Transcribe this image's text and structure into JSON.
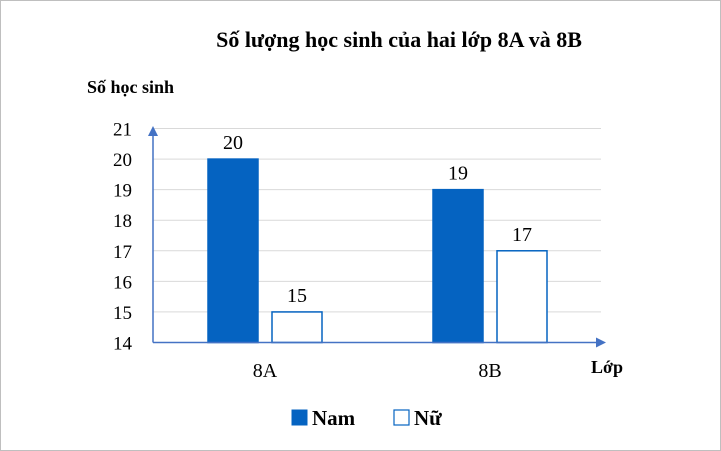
{
  "chart_data": {
    "type": "bar",
    "title": "Số lượng học sinh của hai lớp 8A và 8B",
    "ylabel": "Số học sinh",
    "xlabel": "Lớp",
    "categories": [
      "8A",
      "8B"
    ],
    "yticks": [
      "21",
      "20",
      "19",
      "18",
      "17",
      "16",
      "15",
      "14"
    ],
    "ylim": [
      14,
      21
    ],
    "grid": true,
    "legend_position": "bottom",
    "series": [
      {
        "name": "Nam",
        "values": [
          20,
          19
        ],
        "color": "#0563c1",
        "fill": "solid"
      },
      {
        "name": "Nữ",
        "values": [
          15,
          17
        ],
        "color": "#0563c1",
        "fill": "none"
      }
    ]
  }
}
